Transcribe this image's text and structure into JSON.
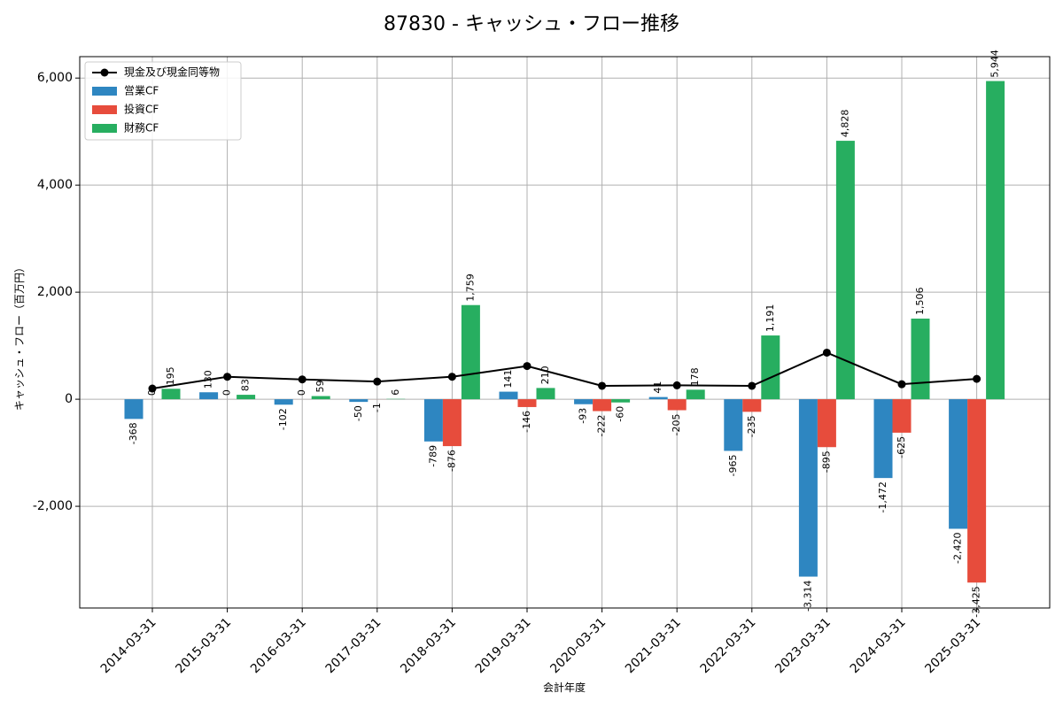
{
  "chart_data": {
    "type": "bar",
    "title": "87830 - キャッシュ・フロー推移",
    "xlabel": "会計年度",
    "ylabel": "キャッシュ・フロー（百万円）",
    "ylim": [
      -3900,
      6400
    ],
    "yticks": [
      -2000,
      0,
      2000,
      4000,
      6000
    ],
    "ytick_labels": [
      "-2,000",
      "0",
      "2,000",
      "4,000",
      "6,000"
    ],
    "grid": true,
    "legend_position": "top-left",
    "categories": [
      "2014-03-31",
      "2015-03-31",
      "2016-03-31",
      "2017-03-31",
      "2018-03-31",
      "2019-03-31",
      "2020-03-31",
      "2021-03-31",
      "2022-03-31",
      "2023-03-31",
      "2024-03-31",
      "2025-03-31"
    ],
    "series": [
      {
        "name": "営業CF",
        "color": "#2e86c1",
        "values": [
          -368,
          130,
          -102,
          -50,
          -789,
          141,
          -93,
          41,
          -965,
          -3314,
          -1472,
          -2420
        ],
        "labels": [
          "-368",
          "130",
          "-102",
          "-50",
          "-789",
          "141",
          "-93",
          "41",
          "-965",
          "-3,314",
          "-1,472",
          "-2,420"
        ]
      },
      {
        "name": "投資CF",
        "color": "#e74c3c",
        "values": [
          0,
          0,
          0,
          -1,
          -876,
          -146,
          -222,
          -205,
          -235,
          -895,
          -625,
          -3425
        ],
        "labels": [
          "0",
          "0",
          "0",
          "-1",
          "-876",
          "-146",
          "-222",
          "-205",
          "-235",
          "-895",
          "-625",
          "-3,425"
        ]
      },
      {
        "name": "財務CF",
        "color": "#27ae60",
        "values": [
          195,
          83,
          59,
          6,
          1759,
          210,
          -60,
          178,
          1191,
          4828,
          1506,
          5944
        ],
        "labels": [
          "195",
          "83",
          "59",
          "6",
          "1,759",
          "210",
          "-60",
          "178",
          "1,191",
          "4,828",
          "1,506",
          "5,944"
        ]
      }
    ],
    "line": {
      "name": "現金及び現金同等物",
      "color": "#000000",
      "values": [
        200,
        420,
        370,
        330,
        420,
        620,
        250,
        260,
        250,
        870,
        280,
        380
      ]
    }
  }
}
